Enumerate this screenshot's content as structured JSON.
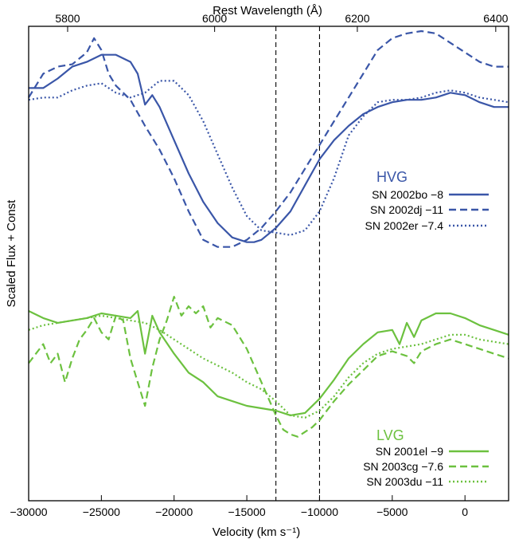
{
  "chart_data": {
    "type": "line",
    "title": "",
    "xlabel": "Velocity (km s⁻¹)",
    "ylabel": "Scaled Flux + Const",
    "top_xlabel": "Rest Wavelength (Å)",
    "xlim": [
      -30000,
      3000
    ],
    "ylim": [
      0,
      1
    ],
    "grid": false,
    "x_ticks": [
      -30000,
      -25000,
      -20000,
      -15000,
      -10000,
      -5000,
      0
    ],
    "x_tick_labels": [
      "−30000",
      "−25000",
      "−20000",
      "−15000",
      "−10000",
      "−5000",
      "0"
    ],
    "top_ticks": [
      5800,
      6000,
      6200,
      6400
    ],
    "top_tick_labels": [
      "5800",
      "6000",
      "6200",
      "6400"
    ],
    "vlines": [
      -13000,
      -10000
    ],
    "groups": [
      {
        "label": "HVG",
        "color": "#3a56a8"
      },
      {
        "label": "LVG",
        "color": "#6cc13f"
      }
    ],
    "series": [
      {
        "name": "SN 2002bo −8",
        "group": "HVG",
        "color": "#3a56a8",
        "dash": "solid",
        "x": [
          -30000,
          -29000,
          -28000,
          -27000,
          -26000,
          -25000,
          -24000,
          -23000,
          -22500,
          -22000,
          -21500,
          -21000,
          -20000,
          -19000,
          -18000,
          -17000,
          -16000,
          -15000,
          -14500,
          -14000,
          -13000,
          -12000,
          -11000,
          -10000,
          -9000,
          -8000,
          -7000,
          -6000,
          -5000,
          -4000,
          -3000,
          -2000,
          -1000,
          0,
          1000,
          2000,
          3000
        ],
        "y": [
          0.87,
          0.87,
          0.89,
          0.915,
          0.925,
          0.94,
          0.94,
          0.925,
          0.9,
          0.835,
          0.855,
          0.83,
          0.76,
          0.69,
          0.63,
          0.585,
          0.555,
          0.545,
          0.545,
          0.55,
          0.575,
          0.61,
          0.665,
          0.72,
          0.76,
          0.79,
          0.815,
          0.83,
          0.84,
          0.845,
          0.845,
          0.85,
          0.86,
          0.855,
          0.84,
          0.83,
          0.83
        ]
      },
      {
        "name": "SN 2002dj −11",
        "group": "HVG",
        "color": "#3a56a8",
        "dash": "dashed",
        "x": [
          -30000,
          -29000,
          -28000,
          -27000,
          -26000,
          -25500,
          -25000,
          -24500,
          -24000,
          -23000,
          -22000,
          -21000,
          -20000,
          -19000,
          -18000,
          -17000,
          -16000,
          -15000,
          -14000,
          -13000,
          -12000,
          -11000,
          -10000,
          -9000,
          -8000,
          -7000,
          -6000,
          -5000,
          -4000,
          -3000,
          -2000,
          -1000,
          0,
          1000,
          2000,
          3000
        ],
        "y": [
          0.85,
          0.9,
          0.915,
          0.92,
          0.945,
          0.975,
          0.95,
          0.9,
          0.875,
          0.845,
          0.79,
          0.74,
          0.68,
          0.61,
          0.55,
          0.535,
          0.535,
          0.55,
          0.575,
          0.61,
          0.65,
          0.7,
          0.75,
          0.8,
          0.85,
          0.9,
          0.95,
          0.975,
          0.985,
          0.99,
          0.985,
          0.965,
          0.945,
          0.925,
          0.915,
          0.915
        ]
      },
      {
        "name": "SN 2002er −7.4",
        "group": "HVG",
        "color": "#3a56a8",
        "dash": "dotted",
        "x": [
          -30000,
          -29000,
          -28000,
          -27000,
          -26000,
          -25000,
          -24000,
          -23000,
          -22000,
          -21000,
          -20000,
          -19000,
          -18000,
          -17000,
          -16000,
          -15000,
          -14000,
          -13000,
          -12000,
          -11000,
          -10000,
          -9000,
          -8000,
          -7000,
          -6000,
          -5000,
          -4000,
          -3000,
          -2000,
          -1000,
          0,
          1000,
          2000,
          3000
        ],
        "y": [
          0.845,
          0.85,
          0.85,
          0.865,
          0.875,
          0.88,
          0.86,
          0.85,
          0.86,
          0.885,
          0.885,
          0.855,
          0.8,
          0.73,
          0.66,
          0.6,
          0.57,
          0.565,
          0.56,
          0.57,
          0.61,
          0.68,
          0.77,
          0.81,
          0.84,
          0.845,
          0.845,
          0.85,
          0.86,
          0.865,
          0.86,
          0.85,
          0.845,
          0.84
        ]
      },
      {
        "name": "SN 2001el −9",
        "group": "LVG",
        "color": "#6cc13f",
        "dash": "solid",
        "x": [
          -30000,
          -29000,
          -28000,
          -27000,
          -26000,
          -25000,
          -24000,
          -23000,
          -22500,
          -22000,
          -21500,
          -21000,
          -20000,
          -19000,
          -18000,
          -17000,
          -16000,
          -15000,
          -14000,
          -13000,
          -12000,
          -11000,
          -10000,
          -9000,
          -8000,
          -7000,
          -6000,
          -5000,
          -4500,
          -4000,
          -3500,
          -3000,
          -2000,
          -1000,
          0,
          1000,
          2000,
          3000
        ],
        "y": [
          0.4,
          0.385,
          0.375,
          0.38,
          0.385,
          0.395,
          0.39,
          0.385,
          0.4,
          0.31,
          0.39,
          0.355,
          0.31,
          0.27,
          0.25,
          0.22,
          0.21,
          0.2,
          0.195,
          0.19,
          0.18,
          0.185,
          0.215,
          0.255,
          0.3,
          0.33,
          0.355,
          0.36,
          0.33,
          0.375,
          0.345,
          0.38,
          0.395,
          0.395,
          0.385,
          0.37,
          0.36,
          0.35
        ]
      },
      {
        "name": "SN 2003cg −7.6",
        "group": "LVG",
        "color": "#6cc13f",
        "dash": "dashed",
        "x": [
          -30000,
          -29500,
          -29000,
          -28500,
          -28000,
          -27500,
          -27000,
          -26500,
          -26000,
          -25500,
          -25000,
          -24500,
          -24000,
          -23500,
          -23000,
          -22500,
          -22000,
          -21500,
          -21000,
          -20500,
          -20000,
          -19500,
          -19000,
          -18500,
          -18000,
          -17500,
          -17000,
          -16000,
          -15000,
          -14000,
          -13000,
          -12500,
          -12000,
          -11500,
          -11000,
          -10500,
          -10000,
          -9000,
          -8000,
          -7000,
          -6000,
          -5000,
          -4000,
          -3500,
          -3000,
          -2000,
          -1000,
          0,
          1000,
          2000,
          3000
        ],
        "y": [
          0.29,
          0.31,
          0.33,
          0.29,
          0.31,
          0.25,
          0.3,
          0.34,
          0.36,
          0.385,
          0.355,
          0.34,
          0.39,
          0.38,
          0.3,
          0.25,
          0.2,
          0.28,
          0.34,
          0.38,
          0.43,
          0.39,
          0.41,
          0.395,
          0.41,
          0.365,
          0.385,
          0.37,
          0.32,
          0.25,
          0.18,
          0.15,
          0.14,
          0.135,
          0.145,
          0.155,
          0.17,
          0.21,
          0.245,
          0.275,
          0.305,
          0.315,
          0.305,
          0.29,
          0.315,
          0.33,
          0.34,
          0.33,
          0.32,
          0.31,
          0.3
        ]
      },
      {
        "name": "SN 2003du −11",
        "group": "LVG",
        "color": "#6cc13f",
        "dash": "dotted",
        "x": [
          -30000,
          -29000,
          -28000,
          -27000,
          -26000,
          -25000,
          -24000,
          -23000,
          -22000,
          -21000,
          -20000,
          -19000,
          -18000,
          -17000,
          -16000,
          -15000,
          -14000,
          -13000,
          -12000,
          -11000,
          -10000,
          -9000,
          -8000,
          -7000,
          -6000,
          -5000,
          -4000,
          -3000,
          -2000,
          -1000,
          0,
          1000,
          2000,
          3000
        ],
        "y": [
          0.36,
          0.37,
          0.375,
          0.38,
          0.385,
          0.39,
          0.385,
          0.38,
          0.375,
          0.36,
          0.34,
          0.32,
          0.3,
          0.285,
          0.27,
          0.25,
          0.235,
          0.21,
          0.18,
          0.175,
          0.19,
          0.22,
          0.26,
          0.29,
          0.31,
          0.32,
          0.325,
          0.33,
          0.34,
          0.35,
          0.35,
          0.34,
          0.335,
          0.33
        ]
      }
    ]
  }
}
